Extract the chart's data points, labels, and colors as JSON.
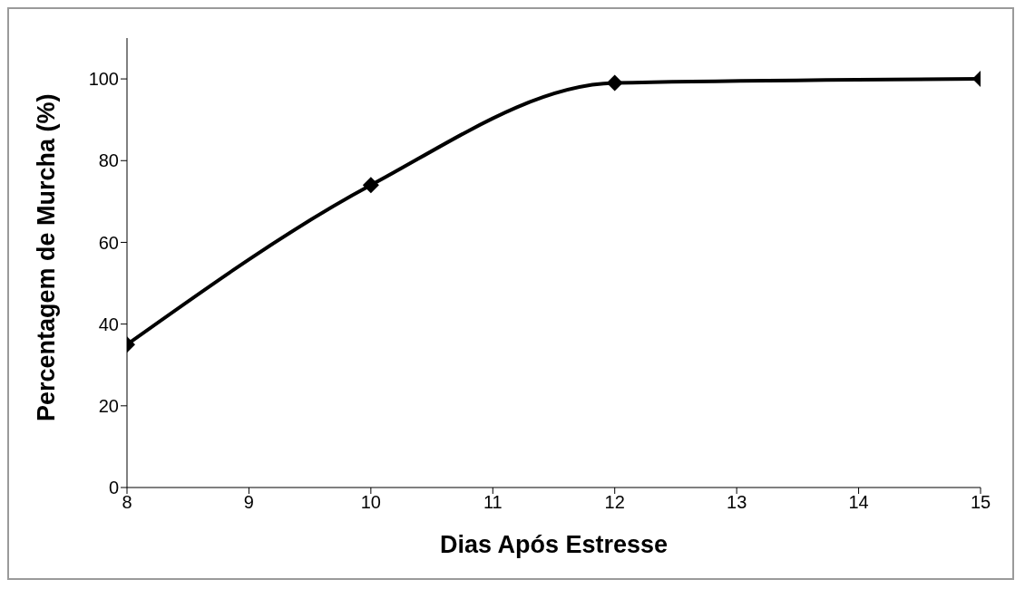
{
  "chart_data": {
    "type": "line",
    "xlabel": "Dias Após Estresse",
    "ylabel": "Percentagem de Murcha (%)",
    "x": [
      8,
      10,
      12,
      15
    ],
    "series": [
      {
        "color": "#000000",
        "values": [
          35,
          74,
          99,
          100
        ]
      }
    ],
    "xlim": [
      8,
      15
    ],
    "xticks": [
      8,
      9,
      10,
      11,
      12,
      13,
      14,
      15
    ],
    "ylim": [
      0,
      110
    ],
    "yticks": [
      0,
      20,
      40,
      60,
      80,
      100
    ],
    "grid": false,
    "legend": false,
    "marker": "diamond",
    "line_style": "solid"
  }
}
